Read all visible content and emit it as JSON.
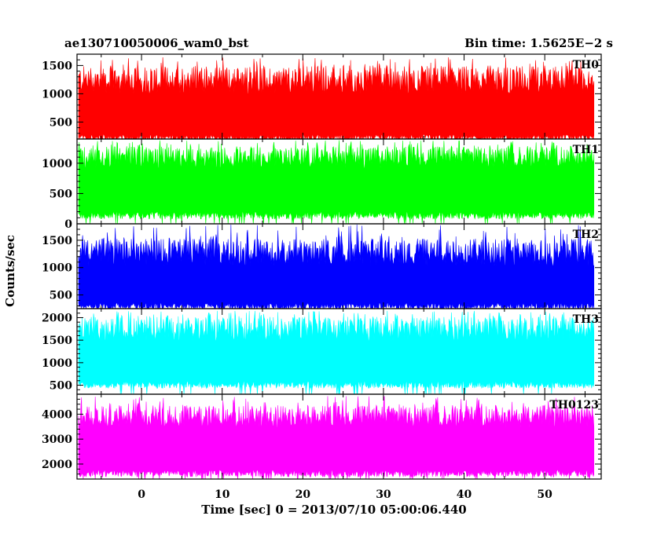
{
  "chart_data": {
    "type": "line",
    "title_left": "ae130710050006_wam0_bst",
    "title_right": "Bin time: 1.5625E−2 s",
    "xlabel": "Time [sec] 0 = 2013/07/10 05:00:06.440",
    "ylabel": "Counts/sec",
    "xlim": [
      -8,
      57
    ],
    "x_ticks": [
      0,
      10,
      20,
      30,
      40,
      50
    ],
    "x_tick_labels": [
      "0",
      "10",
      "20",
      "30",
      "40",
      "50"
    ],
    "data_x_range": [
      -7.8,
      56.1
    ],
    "panels": [
      {
        "name": "TH0",
        "color": "#ff0000",
        "ylim": [
          200,
          1700
        ],
        "y_ticks": [
          500,
          1000,
          1500
        ],
        "y_tick_labels": [
          "500",
          "1000",
          "1500"
        ],
        "base": 150,
        "top_mean": 1250,
        "top_spread": 250,
        "top_max": 1650
      },
      {
        "name": "TH1",
        "color": "#00ff00",
        "ylim": [
          0,
          1400
        ],
        "y_ticks": [
          0,
          500,
          1000
        ],
        "y_tick_labels": [
          "0",
          "500",
          "1000"
        ],
        "base": 80,
        "top_mean": 1100,
        "top_spread": 180,
        "top_max": 1380
      },
      {
        "name": "TH2",
        "color": "#0000ff",
        "ylim": [
          250,
          1800
        ],
        "y_ticks": [
          500,
          1000,
          1500
        ],
        "y_tick_labels": [
          "500",
          "1000",
          "1500"
        ],
        "base": 230,
        "top_mean": 1280,
        "top_spread": 250,
        "top_max": 1790
      },
      {
        "name": "TH3",
        "color": "#00ffff",
        "ylim": [
          300,
          2200
        ],
        "y_ticks": [
          500,
          1000,
          1500,
          2000
        ],
        "y_tick_labels": [
          "500",
          "1000",
          "1500",
          "2000"
        ],
        "base": 430,
        "top_mean": 1750,
        "top_spread": 270,
        "top_max": 2150
      },
      {
        "name": "TH0123",
        "color": "#ff00ff",
        "ylim": [
          1400,
          4800
        ],
        "y_ticks": [
          2000,
          3000,
          4000
        ],
        "y_tick_labels": [
          "2000",
          "3000",
          "4000"
        ],
        "base": 1480,
        "top_mean": 3900,
        "top_spread": 450,
        "top_max": 4750
      }
    ]
  }
}
